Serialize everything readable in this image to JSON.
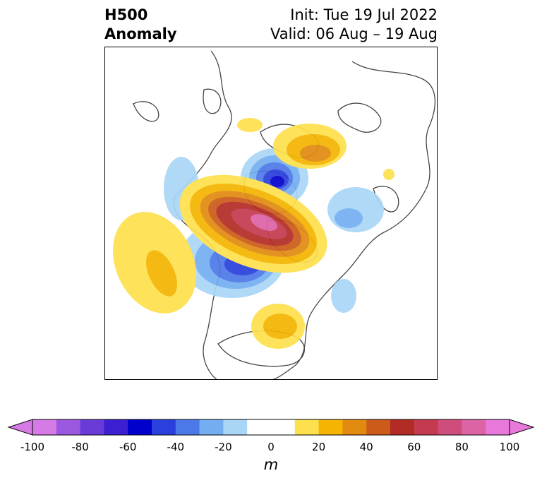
{
  "title": {
    "left_line1": "H500",
    "left_line2": "Anomaly",
    "right_line1": "Init: Tue 19 Jul 2022",
    "right_line2": "Valid: 06 Aug – 19 Aug"
  },
  "colorbar": {
    "unit": "m",
    "ticks": [
      "-100",
      "-80",
      "-60",
      "-40",
      "-20",
      "0",
      "20",
      "40",
      "60",
      "80",
      "100"
    ],
    "colors": [
      "#d67ae6",
      "#9b58e0",
      "#6a3bd8",
      "#3c1fd0",
      "#0000cd",
      "#2a3fdc",
      "#4d78e8",
      "#74aef0",
      "#a9d6f7",
      "#ffffff",
      "#ffffff",
      "#fde04d",
      "#f5b400",
      "#e08a10",
      "#cc5a18",
      "#b22b25",
      "#c43a4f",
      "#cf4d7a",
      "#dc63a6",
      "#e878da"
    ]
  },
  "map": {
    "projection": "polar stereographic (North America / Arctic)",
    "field": "500 hPa geopotential height anomaly"
  }
}
